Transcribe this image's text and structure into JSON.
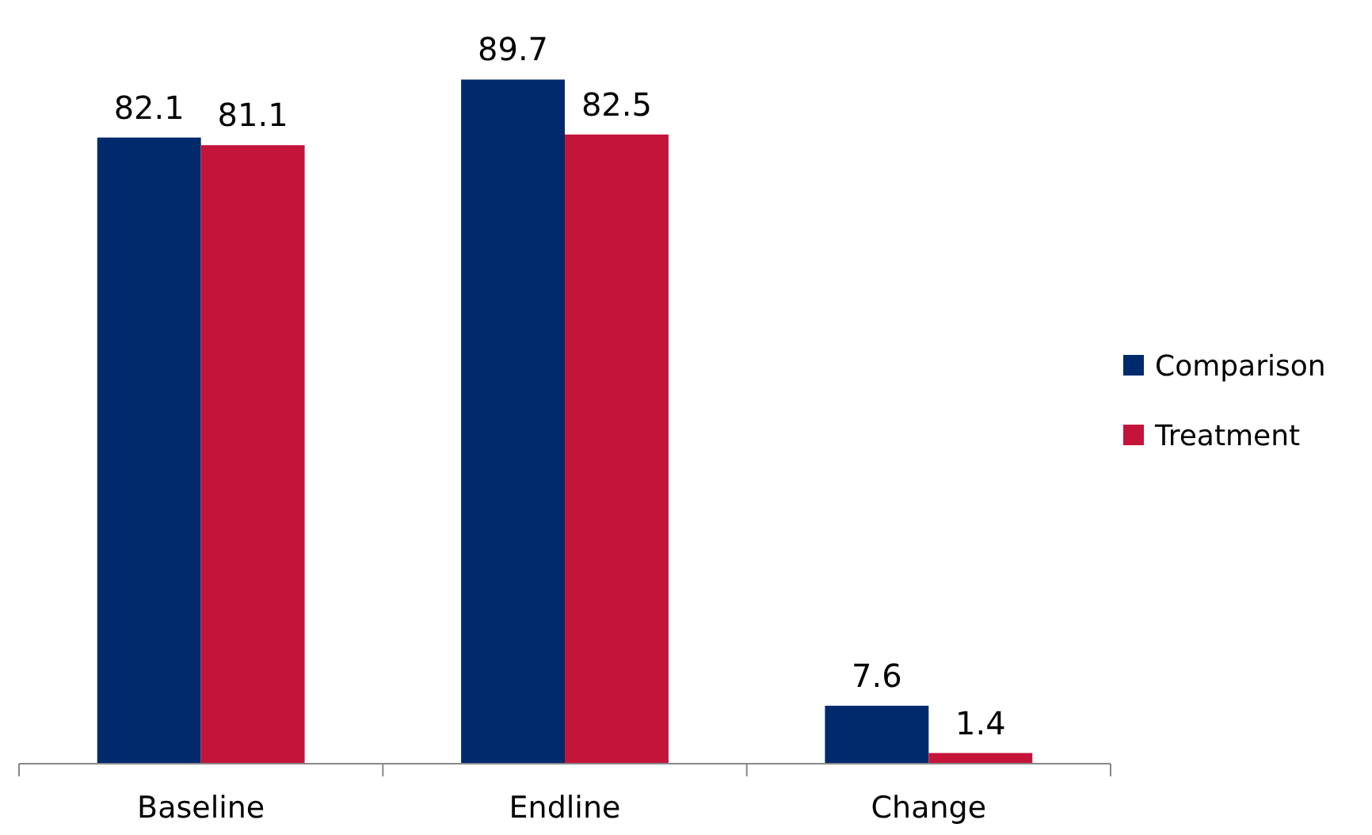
{
  "chart_data": {
    "type": "bar",
    "categories": [
      "Baseline",
      "Endline",
      "Change"
    ],
    "series": [
      {
        "name": "Comparison",
        "color": "#002a6c",
        "values": [
          82.1,
          89.7,
          7.6
        ]
      },
      {
        "name": "Treatment",
        "color": "#c4143a",
        "values": [
          81.1,
          82.5,
          1.4
        ]
      }
    ],
    "data_labels": true,
    "legend": "right"
  }
}
